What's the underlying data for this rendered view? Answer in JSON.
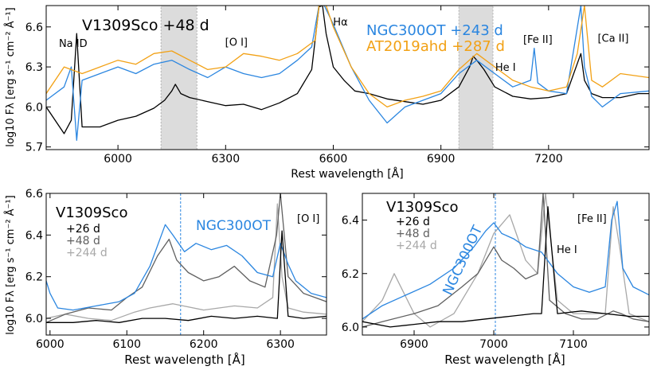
{
  "figure": {
    "colors": {
      "black": "#000000",
      "blue": "#2b86e0",
      "orange": "#f2a115",
      "dark_gray": "#606060",
      "light_gray": "#a8a8a8",
      "shade": "#dcdcdc"
    }
  },
  "chart_data": [
    {
      "type": "line",
      "panel": "top",
      "title": "V1309Sco +48 d",
      "xlabel": "Rest wavelength [Å]",
      "ylabel": "log10 Fλ [erg s⁻¹ cm⁻² Å⁻¹]",
      "xlim": [
        5800,
        7480
      ],
      "ylim": [
        5.68,
        6.76
      ],
      "xticks": [
        6000,
        6300,
        6600,
        6900,
        7200
      ],
      "yticks": [
        5.7,
        6.0,
        6.3,
        6.6
      ],
      "ytick_labels": [
        "5.7",
        "6.0",
        "6.3",
        "6.6"
      ],
      "shaded_regions": [
        [
          6120,
          6220
        ],
        [
          6950,
          7045
        ]
      ],
      "annotations": [
        {
          "text": "Na ID",
          "x": 5875,
          "y": 6.45
        },
        {
          "text": "[O I]",
          "x": 6330,
          "y": 6.46
        },
        {
          "text": "Hα",
          "x": 6620,
          "y": 6.61
        },
        {
          "text": "He I",
          "x": 7080,
          "y": 6.27
        },
        {
          "text": "[Fe II]",
          "x": 7170,
          "y": 6.48
        },
        {
          "text": "[Ca II]",
          "x": 7380,
          "y": 6.49
        }
      ],
      "legend": [
        {
          "label": "NGC300OT +243 d",
          "color": "#2b86e0"
        },
        {
          "label": "AT2019ahd +287 d",
          "color": "#f2a115"
        }
      ],
      "series": [
        {
          "name": "V1309Sco +48 d",
          "color": "#000000",
          "x": [
            5800,
            5850,
            5870,
            5885,
            5900,
            5950,
            6000,
            6050,
            6100,
            6130,
            6150,
            6160,
            6175,
            6200,
            6250,
            6300,
            6350,
            6400,
            6450,
            6500,
            6540,
            6560,
            6570,
            6580,
            6600,
            6630,
            6660,
            6700,
            6750,
            6800,
            6850,
            6900,
            6950,
            6980,
            6990,
            7000,
            7020,
            7050,
            7100,
            7150,
            7200,
            7250,
            7290,
            7300,
            7320,
            7350,
            7400,
            7450,
            7480
          ],
          "y": [
            6.0,
            5.8,
            5.9,
            6.55,
            5.85,
            5.85,
            5.9,
            5.93,
            5.99,
            6.05,
            6.12,
            6.17,
            6.1,
            6.07,
            6.04,
            6.01,
            6.02,
            5.98,
            6.03,
            6.1,
            6.28,
            6.75,
            6.76,
            6.55,
            6.3,
            6.2,
            6.12,
            6.1,
            6.06,
            6.04,
            6.02,
            6.05,
            6.15,
            6.3,
            6.38,
            6.35,
            6.28,
            6.15,
            6.08,
            6.06,
            6.07,
            6.1,
            6.4,
            6.2,
            6.1,
            6.07,
            6.07,
            6.1,
            6.1
          ]
        },
        {
          "name": "NGC300OT +243 d",
          "color": "#2b86e0",
          "x": [
            5800,
            5850,
            5870,
            5885,
            5900,
            5950,
            6000,
            6050,
            6100,
            6150,
            6200,
            6250,
            6300,
            6350,
            6400,
            6450,
            6500,
            6540,
            6560,
            6575,
            6600,
            6650,
            6700,
            6750,
            6800,
            6850,
            6900,
            6950,
            7000,
            7050,
            7100,
            7150,
            7160,
            7170,
            7200,
            7250,
            7290,
            7300,
            7320,
            7350,
            7400,
            7480
          ],
          "y": [
            6.05,
            6.15,
            6.3,
            5.75,
            6.2,
            6.25,
            6.3,
            6.25,
            6.32,
            6.35,
            6.28,
            6.22,
            6.3,
            6.25,
            6.22,
            6.25,
            6.35,
            6.45,
            6.76,
            6.76,
            6.62,
            6.3,
            6.05,
            5.88,
            6.0,
            6.05,
            6.1,
            6.25,
            6.35,
            6.25,
            6.15,
            6.2,
            6.44,
            6.18,
            6.12,
            6.1,
            6.76,
            6.3,
            6.08,
            6.0,
            6.1,
            6.12
          ]
        },
        {
          "name": "AT2019ahd +287 d",
          "color": "#f2a115",
          "x": [
            5800,
            5850,
            5900,
            5950,
            6000,
            6050,
            6100,
            6150,
            6200,
            6250,
            6300,
            6350,
            6400,
            6450,
            6500,
            6550,
            6560,
            6580,
            6600,
            6650,
            6700,
            6750,
            6800,
            6850,
            6900,
            6950,
            7000,
            7050,
            7100,
            7150,
            7200,
            7250,
            7280,
            7300,
            7320,
            7350,
            7400,
            7480
          ],
          "y": [
            6.1,
            6.3,
            6.25,
            6.3,
            6.35,
            6.32,
            6.4,
            6.42,
            6.35,
            6.28,
            6.3,
            6.4,
            6.38,
            6.35,
            6.4,
            6.5,
            6.76,
            6.76,
            6.6,
            6.3,
            6.1,
            6.0,
            6.05,
            6.08,
            6.12,
            6.28,
            6.4,
            6.3,
            6.2,
            6.15,
            6.12,
            6.15,
            6.4,
            6.76,
            6.2,
            6.15,
            6.25,
            6.22
          ]
        }
      ]
    },
    {
      "type": "line",
      "panel": "bottom-left",
      "title": "V1309Sco",
      "xlabel": "Rest wavelength [Å]",
      "ylabel": "log10 Fλ [erg s⁻¹ cm⁻² Å⁻¹]",
      "xlim": [
        5995,
        6360
      ],
      "ylim": [
        5.92,
        6.6
      ],
      "xticks": [
        6000,
        6100,
        6200,
        6300
      ],
      "yticks": [
        6.0,
        6.2,
        6.4,
        6.6
      ],
      "ytick_labels": [
        "6.0",
        "6.2",
        "6.4",
        "6.6"
      ],
      "vline": 6170,
      "annotations": [
        {
          "text": "NGC300OT",
          "color": "#2b86e0"
        },
        {
          "text": "[O I]",
          "color": "#000000"
        }
      ],
      "legend": [
        {
          "label": "+26 d",
          "color": "#000000"
        },
        {
          "label": "+48 d",
          "color": "#606060"
        },
        {
          "label": "+244 d",
          "color": "#a8a8a8"
        }
      ],
      "series": [
        {
          "name": "+244 d",
          "color": "#a8a8a8",
          "x": [
            5995,
            6020,
            6050,
            6080,
            6110,
            6130,
            6160,
            6200,
            6240,
            6270,
            6290,
            6296,
            6302,
            6310,
            6330,
            6360
          ],
          "y": [
            6.0,
            6.02,
            6.0,
            5.99,
            6.03,
            6.05,
            6.07,
            6.04,
            6.06,
            6.05,
            6.1,
            6.55,
            6.2,
            6.05,
            6.03,
            6.02
          ]
        },
        {
          "name": "+48 d",
          "color": "#606060",
          "x": [
            5995,
            6020,
            6050,
            6080,
            6100,
            6120,
            6140,
            6155,
            6165,
            6180,
            6200,
            6220,
            6240,
            6260,
            6280,
            6295,
            6300,
            6310,
            6330,
            6360
          ],
          "y": [
            5.98,
            6.02,
            6.05,
            6.04,
            6.1,
            6.15,
            6.3,
            6.38,
            6.28,
            6.22,
            6.18,
            6.2,
            6.25,
            6.18,
            6.15,
            6.4,
            6.6,
            6.2,
            6.12,
            6.08
          ]
        },
        {
          "name": "NGC300OT",
          "color": "#2b86e0",
          "x": [
            5995,
            6000,
            6010,
            6030,
            6060,
            6090,
            6110,
            6130,
            6150,
            6160,
            6175,
            6190,
            6210,
            6230,
            6250,
            6270,
            6290,
            6300,
            6310,
            6320,
            6340,
            6360
          ],
          "y": [
            6.18,
            6.12,
            6.05,
            6.04,
            6.06,
            6.08,
            6.12,
            6.25,
            6.45,
            6.4,
            6.32,
            6.36,
            6.33,
            6.35,
            6.3,
            6.22,
            6.2,
            6.36,
            6.26,
            6.18,
            6.12,
            6.1
          ]
        },
        {
          "name": "+26 d",
          "color": "#000000",
          "x": [
            5995,
            6030,
            6060,
            6090,
            6120,
            6150,
            6180,
            6210,
            6240,
            6270,
            6296,
            6302,
            6310,
            6330,
            6360
          ],
          "y": [
            5.98,
            5.98,
            5.99,
            5.98,
            6.0,
            6.0,
            5.99,
            6.01,
            6.0,
            6.01,
            6.0,
            6.42,
            6.01,
            6.0,
            6.01
          ]
        }
      ]
    },
    {
      "type": "line",
      "panel": "bottom-right",
      "title": "V1309Sco",
      "xlabel": "Rest wavelength [Å]",
      "ylabel": "",
      "xlim": [
        6835,
        7195
      ],
      "ylim": [
        5.97,
        6.5
      ],
      "xticks": [
        6900,
        7000,
        7100
      ],
      "yticks": [
        6.0,
        6.2,
        6.4
      ],
      "ytick_labels": [
        "6.0",
        "6.2",
        "6.4"
      ],
      "vline": 7002,
      "annotations": [
        {
          "text": "NGC300OT",
          "color": "#2b86e0"
        },
        {
          "text": "He I",
          "color": "#000000"
        },
        {
          "text": "[Fe II]",
          "color": "#000000"
        }
      ],
      "legend": [
        {
          "label": "+26 d",
          "color": "#000000"
        },
        {
          "label": "+48 d",
          "color": "#606060"
        },
        {
          "label": "+244 d",
          "color": "#a8a8a8"
        }
      ],
      "series": [
        {
          "name": "+244 d",
          "color": "#a8a8a8",
          "x": [
            6835,
            6860,
            6875,
            6885,
            6900,
            6920,
            6950,
            6980,
            7000,
            7020,
            7040,
            7055,
            7065,
            7080,
            7100,
            7140,
            7150,
            7158,
            7170,
            7195
          ],
          "y": [
            6.02,
            6.1,
            6.2,
            6.14,
            6.05,
            6.0,
            6.05,
            6.2,
            6.35,
            6.42,
            6.25,
            6.2,
            6.5,
            6.1,
            6.05,
            6.05,
            6.45,
            6.3,
            6.05,
            6.02
          ]
        },
        {
          "name": "+48 d",
          "color": "#606060",
          "x": [
            6835,
            6860,
            6900,
            6930,
            6960,
            6980,
            7000,
            7010,
            7025,
            7040,
            7055,
            7062,
            7070,
            7090,
            7110,
            7130,
            7150,
            7160,
            7175,
            7195
          ],
          "y": [
            6.0,
            6.02,
            6.05,
            6.08,
            6.15,
            6.2,
            6.3,
            6.25,
            6.22,
            6.18,
            6.2,
            6.5,
            6.1,
            6.05,
            6.03,
            6.03,
            6.06,
            6.05,
            6.03,
            6.02
          ]
        },
        {
          "name": "NGC300OT",
          "color": "#2b86e0",
          "x": [
            6835,
            6860,
            6890,
            6920,
            6950,
            6975,
            6990,
            7000,
            7010,
            7025,
            7040,
            7060,
            7080,
            7100,
            7120,
            7140,
            7148,
            7155,
            7162,
            7175,
            7195
          ],
          "y": [
            6.03,
            6.08,
            6.12,
            6.16,
            6.22,
            6.3,
            6.36,
            6.39,
            6.35,
            6.33,
            6.3,
            6.28,
            6.2,
            6.15,
            6.13,
            6.15,
            6.4,
            6.47,
            6.22,
            6.15,
            6.12
          ]
        },
        {
          "name": "+26 d",
          "color": "#000000",
          "x": [
            6835,
            6870,
            6900,
            6930,
            6960,
            6990,
            7020,
            7050,
            7060,
            7068,
            7080,
            7110,
            7140,
            7170,
            7195
          ],
          "y": [
            6.02,
            6.0,
            6.01,
            6.02,
            6.02,
            6.03,
            6.04,
            6.05,
            6.05,
            6.45,
            6.05,
            6.06,
            6.05,
            6.04,
            6.04
          ]
        }
      ]
    }
  ]
}
